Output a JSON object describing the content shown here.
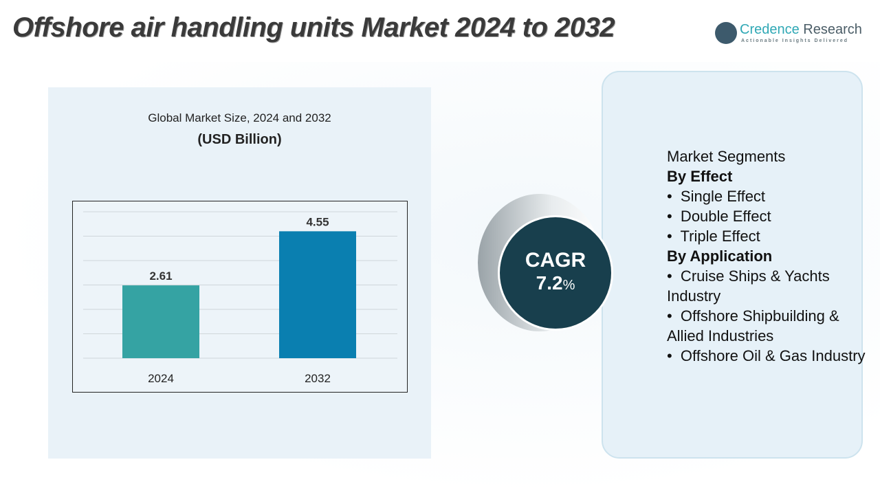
{
  "title": "Offshore air handling units Market 2024 to 2032",
  "logo": {
    "name_1": "Credence",
    "name_2": "Research",
    "tagline": "Actionable Insights Delivered"
  },
  "chart_data": {
    "type": "bar",
    "title": "Global Market Size, 2024 and 2032",
    "subtitle": "(USD Billion)",
    "categories": [
      "2024",
      "2032"
    ],
    "values": [
      2.61,
      4.55
    ],
    "value_labels": [
      "2.61",
      "4.55"
    ],
    "colors": [
      "#35a3a3",
      "#0a7fb0"
    ],
    "ylim": [
      0,
      5.25
    ],
    "grid": true
  },
  "cagr": {
    "label": "CAGR",
    "value": "7.2",
    "unit": "%"
  },
  "segments": {
    "heading": "Market Segments",
    "lines": [
      {
        "text": "By Effect",
        "bold": true
      },
      {
        "text": "•  Single Effect"
      },
      {
        "text": "•  Double Effect"
      },
      {
        "text": "•  Triple Effect"
      },
      {
        "text": "By Application",
        "bold": true
      },
      {
        "text": "•  Cruise Ships & Yachts Industry"
      },
      {
        "text": "•  Offshore Shipbuilding & Allied Industries"
      },
      {
        "text": "•  Offshore Oil & Gas Industry"
      }
    ]
  }
}
